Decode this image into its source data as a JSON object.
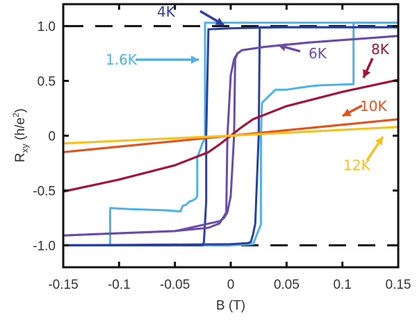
{
  "chart_data": {
    "type": "line",
    "title": "",
    "xlabel": "B (T)",
    "ylabel_main": "R",
    "ylabel_sub": "xy",
    "ylabel_unit": " (h/e",
    "ylabel_sup": "2",
    "ylabel_close": ")",
    "xlim": [
      -0.15,
      0.15
    ],
    "ylim": [
      -1.2,
      1.2
    ],
    "xticks": [
      -0.15,
      -0.1,
      -0.05,
      0,
      0.05,
      0.1,
      0.15
    ],
    "xtick_labels": [
      "-0.15",
      "-0.1",
      "-0.05",
      "0",
      "0.05",
      "0.1",
      "0.15"
    ],
    "yticks": [
      -1.0,
      -0.5,
      0,
      0.5,
      1.0
    ],
    "ytick_labels": [
      "-1.0",
      "-0.5",
      "0",
      "0.5",
      "1.0"
    ],
    "reference_lines": [
      {
        "y": 1.0,
        "style": "dashed",
        "color": "#111111"
      },
      {
        "y": -1.0,
        "style": "dashed",
        "color": "#111111"
      }
    ],
    "grid": false,
    "series": [
      {
        "name": "1.6K",
        "color": "#4DB3E6",
        "x": [
          -0.15,
          -0.108,
          -0.108,
          -0.09,
          -0.06,
          -0.045,
          -0.043,
          -0.04,
          -0.037,
          -0.034,
          -0.031,
          -0.03,
          -0.03,
          -0.025,
          -0.023,
          -0.023,
          0.0,
          0.05,
          0.11,
          0.11,
          0.15
        ],
        "y": [
          -1.0,
          -1.0,
          -0.66,
          -0.67,
          -0.68,
          -0.69,
          -0.64,
          -0.63,
          -0.6,
          -0.59,
          -0.57,
          -0.55,
          -0.2,
          -0.06,
          -0.03,
          1.03,
          1.03,
          1.03,
          1.03,
          1.03,
          1.03
        ],
        "return_x": [
          0.15,
          0.11,
          0.11,
          0.08,
          0.07,
          0.05,
          0.04,
          0.033,
          0.028,
          0.027,
          0.027,
          0.027,
          0.02,
          0.0,
          -0.05,
          -0.15
        ],
        "return_y": [
          1.03,
          1.03,
          0.47,
          0.46,
          0.45,
          0.42,
          0.42,
          0.35,
          0.3,
          0.0,
          -0.8,
          -0.81,
          -0.99,
          -1.0,
          -1.0,
          -1.0
        ]
      },
      {
        "name": "4K",
        "color": "#2B3F9E",
        "x": [
          -0.15,
          -0.025,
          -0.024,
          -0.022,
          -0.022,
          -0.02,
          0.0,
          0.05,
          0.15
        ],
        "y": [
          -1.0,
          -1.0,
          -0.97,
          -0.6,
          0.0,
          0.97,
          0.98,
          0.99,
          0.99
        ],
        "return_x": [
          0.15,
          0.026,
          0.025,
          0.022,
          0.02,
          0.018,
          0.015,
          0.0,
          -0.15
        ],
        "return_y": [
          0.99,
          0.99,
          0.0,
          -0.8,
          -0.9,
          -0.97,
          -0.98,
          -0.99,
          -1.0
        ]
      },
      {
        "name": "6K",
        "color": "#6A4BA8",
        "x": [
          -0.15,
          -0.1,
          -0.05,
          -0.02,
          -0.01,
          -0.004,
          -0.003,
          0.0,
          0.003,
          0.006,
          0.01,
          0.03,
          0.07,
          0.15
        ],
        "y": [
          -0.91,
          -0.89,
          -0.87,
          -0.84,
          -0.8,
          -0.7,
          0.0,
          0.55,
          0.7,
          0.75,
          0.78,
          0.81,
          0.85,
          0.91
        ],
        "return_x": [
          0.15,
          0.07,
          0.03,
          0.01,
          0.006,
          0.004,
          0.003,
          0.0,
          -0.003,
          -0.006,
          -0.01,
          -0.05,
          -0.15
        ],
        "return_y": [
          0.91,
          0.85,
          0.81,
          0.78,
          0.75,
          0.7,
          0.0,
          -0.55,
          -0.7,
          -0.75,
          -0.78,
          -0.87,
          -0.91
        ]
      },
      {
        "name": "8K",
        "color": "#A3123A",
        "x": [
          -0.15,
          -0.1,
          -0.05,
          -0.02,
          -0.01,
          0.0,
          0.01,
          0.02,
          0.05,
          0.1,
          0.15
        ],
        "y": [
          -0.51,
          -0.4,
          -0.27,
          -0.15,
          -0.08,
          0.0,
          0.08,
          0.15,
          0.27,
          0.4,
          0.51
        ]
      },
      {
        "name": "10K",
        "color": "#E0521E",
        "x": [
          -0.15,
          0.0,
          0.15
        ],
        "y": [
          -0.15,
          0.0,
          0.15
        ]
      },
      {
        "name": "12K",
        "color": "#F5C11E",
        "x": [
          -0.15,
          0.0,
          0.15
        ],
        "y": [
          -0.07,
          0.0,
          0.08
        ]
      }
    ],
    "annotations": [
      {
        "text": "1.6K",
        "color": "#4DB3E6",
        "arrow": "right"
      },
      {
        "text": "4K",
        "color": "#2B3F9E",
        "arrow": "down-right"
      },
      {
        "text": "6K",
        "color": "#6A4BA8",
        "arrow": "up-left"
      },
      {
        "text": "8K",
        "color": "#A3123A",
        "arrow": "down-left"
      },
      {
        "text": "10K",
        "color": "#E0521E",
        "arrow": "down-left"
      },
      {
        "text": "12K",
        "color": "#F5C11E",
        "arrow": "up-right"
      }
    ],
    "legend": "inline annotations"
  }
}
